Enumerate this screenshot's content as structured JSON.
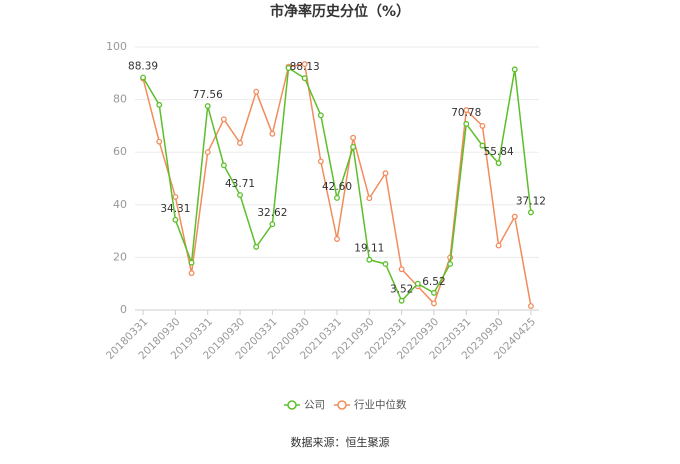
{
  "chart_data": {
    "type": "line",
    "title": "市净率历史分位（%）",
    "source": "数据来源：恒生聚源",
    "categories": [
      "20180331",
      null,
      "20180930",
      null,
      "20190331",
      null,
      "20190930",
      null,
      "20200331",
      null,
      "20200930",
      null,
      "20210331",
      null,
      "20210930",
      null,
      "20220331",
      null,
      "20220930",
      null,
      "20230331",
      null,
      "20230930",
      null,
      "20240425"
    ],
    "series": [
      {
        "name": "公司",
        "color": "#5cbf2a",
        "values": [
          88.39,
          78,
          34.31,
          18,
          77.56,
          55,
          43.71,
          24,
          32.62,
          92,
          88.13,
          74,
          42.6,
          62,
          19.11,
          17.5,
          3.52,
          10,
          6.52,
          17.5,
          70.78,
          62.5,
          55.84,
          91.5,
          37.12
        ],
        "value_labels": [
          "88.39",
          null,
          "34.31",
          null,
          "77.56",
          null,
          "43.71",
          null,
          "32.62",
          null,
          "88.13",
          null,
          "42.60",
          null,
          "19.11",
          null,
          "3.52",
          null,
          "6.52",
          null,
          "70.78",
          null,
          "55.84",
          null,
          "37.12"
        ]
      },
      {
        "name": "行业中位数",
        "color": "#f28c5c",
        "values": [
          88,
          64,
          43,
          14,
          60,
          72.5,
          63.5,
          83,
          67,
          92.5,
          93.5,
          56.5,
          27,
          65.5,
          42.5,
          52,
          15.5,
          9,
          2.5,
          20,
          76,
          70,
          24.5,
          35.5,
          1.5
        ]
      }
    ],
    "ylim": [
      0,
      100
    ],
    "yticks": [
      0,
      20,
      40,
      60,
      80,
      100
    ],
    "grid": true,
    "legend": "bottom"
  }
}
